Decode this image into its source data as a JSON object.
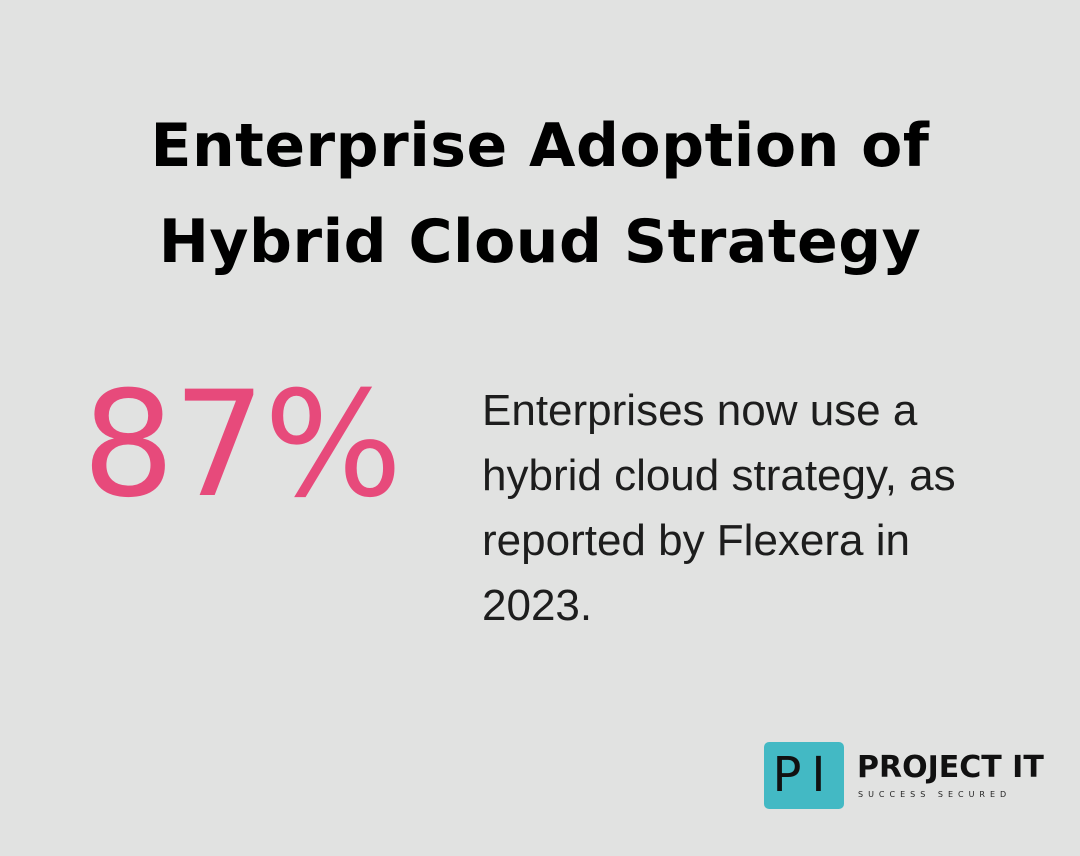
{
  "title": {
    "line1": "Enterprise Adoption of",
    "line2": "Hybrid Cloud Strategy"
  },
  "stat": {
    "value": "87%",
    "color": "#e74a7b"
  },
  "description": "Enterprises now use a hybrid cloud strategy, as reported by Flexera in 2023.",
  "logo": {
    "mark": "PI",
    "name": "PROJECT IT",
    "tagline": "SUCCESS SECURED",
    "color": "#43b9c4"
  }
}
